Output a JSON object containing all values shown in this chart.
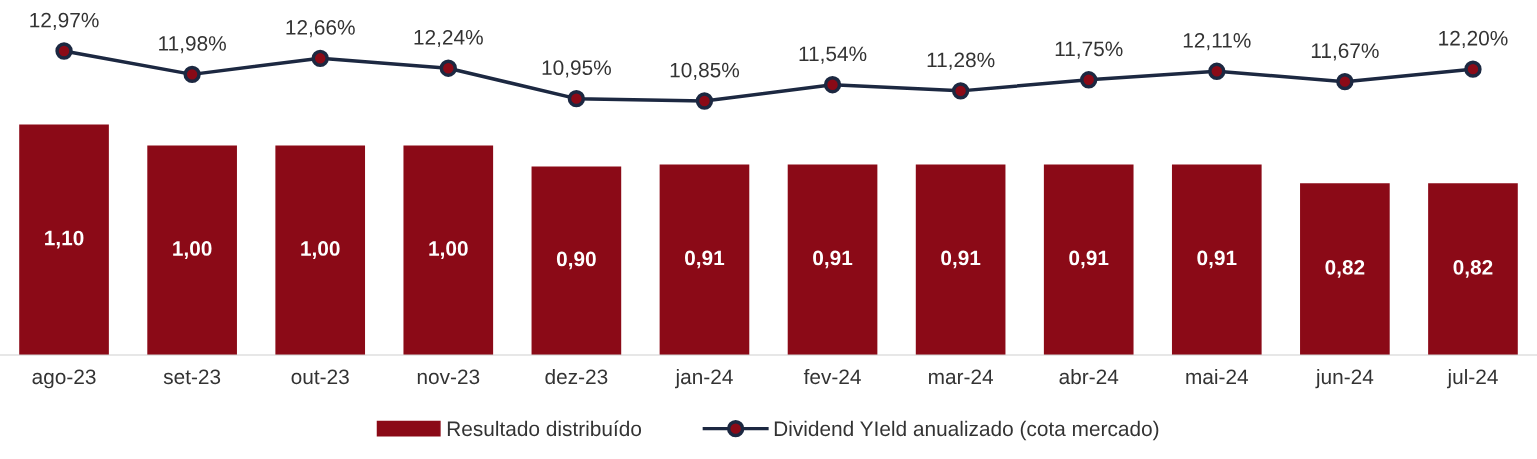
{
  "chart_data": [
    {
      "type": "line",
      "categories": [
        null,
        null,
        null,
        null,
        null,
        null,
        null,
        null,
        null,
        null,
        null,
        null
      ],
      "series": [
        {
          "name": "Dividend YIeld anualizado (cota mercado)",
          "color": "#1c2841",
          "values": [
            12.97,
            11.98,
            12.66,
            12.24,
            10.95,
            10.85,
            11.54,
            11.28,
            11.75,
            12.11,
            11.67,
            12.2
          ],
          "value_labels": [
            "12,97%",
            "11,98%",
            "12,66%",
            "12,24%",
            "10,95%",
            "10,85%",
            "11,54%",
            "11,28%",
            "11,75%",
            "12,11%",
            "11,67%",
            "12,20%"
          ]
        }
      ],
      "legend": "bottom",
      "marker": "circle",
      "line_style": "solid"
    },
    {
      "type": "bar",
      "categories": [
        "ago-23",
        "set-23",
        "out-23",
        "nov-23",
        "dez-23",
        "jan-24",
        "fev-24",
        "mar-24",
        "abr-24",
        "mai-24",
        "jun-24",
        "jul-24"
      ],
      "series": [
        {
          "name": "Resultado distribuído",
          "color": "#8b0a17",
          "values": [
            1.1,
            1.0,
            1.0,
            1.0,
            0.9,
            0.91,
            0.91,
            0.91,
            0.91,
            0.91,
            0.82,
            0.82
          ],
          "value_labels": [
            "1,10",
            "1,00",
            "1,00",
            "1,00",
            "0,90",
            "0,91",
            "0,91",
            "0,91",
            "0,91",
            "0,91",
            "0,82",
            "0,82"
          ]
        }
      ],
      "tick_labels": "x",
      "legend": "bottom"
    }
  ]
}
